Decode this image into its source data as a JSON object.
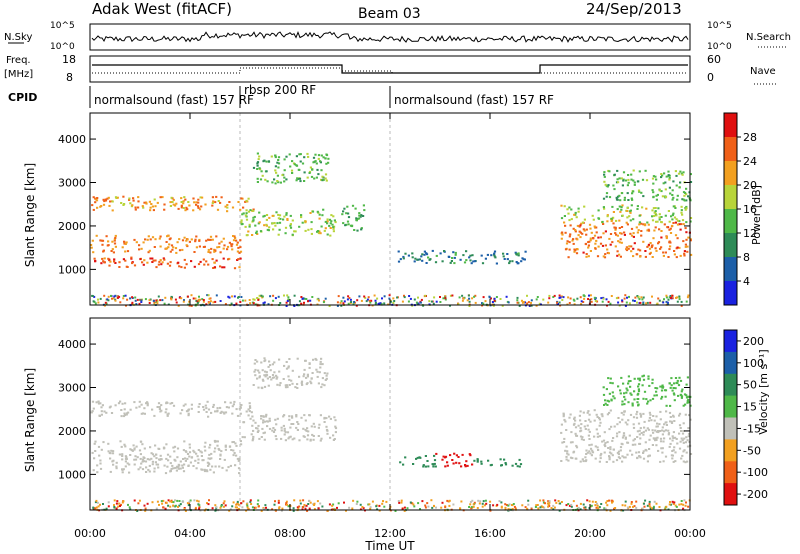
{
  "header": {
    "station": "Adak West (fitACF)",
    "beam": "Beam 03",
    "date": "24/Sep/2013"
  },
  "noise_panel": {
    "left_label": "N.Sky",
    "right_label": "N.Search",
    "left_ticks": [
      "10^5",
      "10^0"
    ],
    "right_ticks": [
      "10^5",
      "10^0"
    ]
  },
  "freq_panel": {
    "left_label": "Freq.",
    "left_unit": "[MHz]",
    "left_ticks": [
      "18",
      "8"
    ],
    "right_label": "Nave",
    "right_ticks": [
      "60",
      "0"
    ]
  },
  "cpid": {
    "label": "CPID",
    "segments": [
      {
        "text": "normalsound (fast) 157 RF",
        "start_h": 0
      },
      {
        "text": "rbsp 200 RF",
        "start_h": 6
      },
      {
        "text": "normalsound (fast) 157 RF",
        "start_h": 12
      }
    ]
  },
  "axes": {
    "ylabel": "Slant Range [km]",
    "xlabel": "Time UT",
    "x_ticks": [
      "00:00",
      "04:00",
      "08:00",
      "12:00",
      "16:00",
      "20:00",
      "00:00"
    ],
    "x_tick_hours": [
      0,
      4,
      8,
      12,
      16,
      20,
      24
    ],
    "y_ticks": [
      "1000",
      "2000",
      "3000",
      "4000"
    ],
    "y_tick_values": [
      1000,
      2000,
      3000,
      4000
    ],
    "yrange_km": [
      180,
      4600
    ],
    "xrange_h": [
      0,
      24
    ]
  },
  "chart_data": [
    {
      "type": "heatmap",
      "panel": "power",
      "colorbar_label": "Power [dB]",
      "colorbar_ticks": [
        "4",
        "8",
        "12",
        "16",
        "20",
        "24",
        "28"
      ],
      "colorbar_values": [
        4,
        8,
        12,
        16,
        20,
        24,
        28
      ],
      "colorbar_range": [
        0,
        32
      ],
      "colors": [
        "#1a22e0",
        "#1c5fa8",
        "#2e8b57",
        "#4fb848",
        "#b8d43a",
        "#f2a020",
        "#f06018",
        "#e01010"
      ],
      "scatter_regions": [
        {
          "t0": 0.0,
          "t1": 6.0,
          "r0": 1050,
          "r1": 1300,
          "level": 27
        },
        {
          "t0": 0.0,
          "t1": 6.0,
          "r0": 1400,
          "r1": 1800,
          "level": 24
        },
        {
          "t0": 0.0,
          "t1": 6.5,
          "r0": 2350,
          "r1": 2700,
          "level": 22
        },
        {
          "t0": 6.0,
          "t1": 9.8,
          "r0": 1800,
          "r1": 2400,
          "level": 17
        },
        {
          "t0": 6.5,
          "t1": 9.5,
          "r0": 3000,
          "r1": 3700,
          "level": 14
        },
        {
          "t0": 10.0,
          "t1": 11.0,
          "r0": 1900,
          "r1": 2500,
          "level": 12
        },
        {
          "t0": 12.3,
          "t1": 17.5,
          "r0": 1150,
          "r1": 1450,
          "level": 9
        },
        {
          "t0": 18.8,
          "t1": 24.0,
          "r0": 1300,
          "r1": 2100,
          "level": 25
        },
        {
          "t0": 18.8,
          "t1": 24.0,
          "r0": 2100,
          "r1": 2500,
          "level": 17
        },
        {
          "t0": 20.5,
          "t1": 24.0,
          "r0": 2600,
          "r1": 3300,
          "level": 14
        }
      ]
    },
    {
      "type": "heatmap",
      "panel": "velocity",
      "colorbar_label": "Velocity [m s⁻¹]",
      "colorbar_ticks": [
        "200",
        "100",
        "50",
        "15",
        "-15",
        "-50",
        "-100",
        "-200"
      ],
      "colorbar_values": [
        200,
        100,
        50,
        15,
        -15,
        -50,
        -100,
        -200
      ],
      "colors": [
        "#1a22e0",
        "#1c5fa8",
        "#2e8b57",
        "#4fb848",
        "#c0c0b8",
        "#f2a020",
        "#f06018",
        "#e01010"
      ],
      "scatter_regions": [
        {
          "t0": 0.0,
          "t1": 6.0,
          "r0": 1050,
          "r1": 1800,
          "level": -5
        },
        {
          "t0": 0.0,
          "t1": 6.5,
          "r0": 2350,
          "r1": 2700,
          "level": 0
        },
        {
          "t0": 6.0,
          "t1": 9.8,
          "r0": 1800,
          "r1": 2400,
          "level": 0
        },
        {
          "t0": 6.5,
          "t1": 9.5,
          "r0": 3000,
          "r1": 3700,
          "level": -10
        },
        {
          "t0": 12.3,
          "t1": 13.8,
          "r0": 1200,
          "r1": 1450,
          "level": 80
        },
        {
          "t0": 13.8,
          "t1": 15.3,
          "r0": 1200,
          "r1": 1500,
          "level": -150
        },
        {
          "t0": 15.3,
          "t1": 17.2,
          "r0": 1200,
          "r1": 1400,
          "level": 60
        },
        {
          "t0": 18.8,
          "t1": 24.0,
          "r0": 1300,
          "r1": 2500,
          "level": 0
        },
        {
          "t0": 20.5,
          "t1": 24.0,
          "r0": 2600,
          "r1": 3300,
          "level": 20
        }
      ]
    }
  ]
}
